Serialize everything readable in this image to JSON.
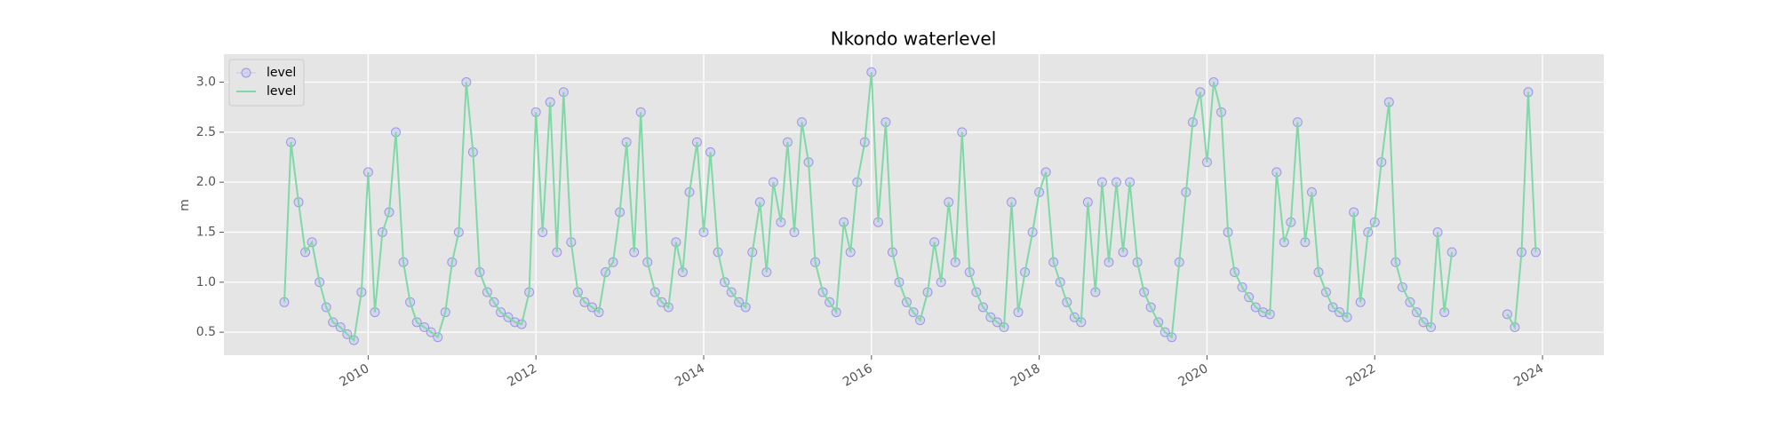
{
  "chart_data": {
    "type": "line",
    "title": "Nkondo waterlevel",
    "ylabel": "m",
    "x": [
      2009.0,
      2009.08,
      2009.17,
      2009.25,
      2009.33,
      2009.42,
      2009.5,
      2009.58,
      2009.67,
      2009.75,
      2009.83,
      2009.92,
      2010.0,
      2010.08,
      2010.17,
      2010.25,
      2010.33,
      2010.42,
      2010.5,
      2010.58,
      2010.67,
      2010.75,
      2010.83,
      2010.92,
      2011.0,
      2011.08,
      2011.17,
      2011.25,
      2011.33,
      2011.42,
      2011.5,
      2011.58,
      2011.67,
      2011.75,
      2011.83,
      2011.92,
      2012.0,
      2012.08,
      2012.17,
      2012.25,
      2012.33,
      2012.42,
      2012.5,
      2012.58,
      2012.67,
      2012.75,
      2012.83,
      2012.92,
      2013.0,
      2013.08,
      2013.17,
      2013.25,
      2013.33,
      2013.42,
      2013.5,
      2013.58,
      2013.67,
      2013.75,
      2013.83,
      2013.92,
      2014.0,
      2014.08,
      2014.17,
      2014.25,
      2014.33,
      2014.42,
      2014.5,
      2014.58,
      2014.67,
      2014.75,
      2014.83,
      2014.92,
      2015.0,
      2015.08,
      2015.17,
      2015.25,
      2015.33,
      2015.42,
      2015.5,
      2015.58,
      2015.67,
      2015.75,
      2015.83,
      2015.92,
      2016.0,
      2016.08,
      2016.17,
      2016.25,
      2016.33,
      2016.42,
      2016.5,
      2016.58,
      2016.67,
      2016.75,
      2016.83,
      2016.92,
      2017.0,
      2017.08,
      2017.17,
      2017.25,
      2017.33,
      2017.42,
      2017.5,
      2017.58,
      2017.67,
      2017.75,
      2017.83,
      2017.92,
      2018.0,
      2018.08,
      2018.17,
      2018.25,
      2018.33,
      2018.42,
      2018.5,
      2018.58,
      2018.67,
      2018.75,
      2018.83,
      2018.92,
      2019.0,
      2019.08,
      2019.17,
      2019.25,
      2019.33,
      2019.42,
      2019.5,
      2019.58,
      2019.67,
      2019.75,
      2019.83,
      2019.92,
      2020.0,
      2020.08,
      2020.17,
      2020.25,
      2020.33,
      2020.42,
      2020.5,
      2020.58,
      2020.67,
      2020.75,
      2020.83,
      2020.92,
      2021.0,
      2021.08,
      2021.17,
      2021.25,
      2021.33,
      2021.42,
      2021.5,
      2021.58,
      2021.67,
      2021.75,
      2021.83,
      2021.92,
      2022.0,
      2022.08,
      2022.17,
      2022.25,
      2022.33,
      2022.42,
      2022.5,
      2022.58,
      2022.67,
      2022.75,
      2022.83,
      2022.92,
      2023.0,
      2023.08,
      2023.17,
      2023.25,
      2023.33,
      2023.42,
      2023.5,
      2023.58,
      2023.67,
      2023.75,
      2023.83,
      2023.92
    ],
    "series": [
      {
        "name": "level",
        "color": "#c8c8f0",
        "edgecolor": "#6a6ae0",
        "style": "markers",
        "values": [
          0.8,
          2.4,
          1.8,
          1.3,
          1.4,
          1.0,
          0.75,
          0.6,
          0.55,
          0.48,
          0.42,
          0.9,
          2.1,
          0.7,
          1.5,
          1.7,
          2.5,
          1.2,
          0.8,
          0.6,
          0.55,
          0.5,
          0.45,
          0.7,
          1.2,
          1.5,
          3.0,
          2.3,
          1.1,
          0.9,
          0.8,
          0.7,
          0.65,
          0.6,
          0.58,
          0.9,
          2.7,
          1.5,
          2.8,
          1.3,
          2.9,
          1.4,
          0.9,
          0.8,
          0.75,
          0.7,
          1.1,
          1.2,
          1.7,
          2.4,
          1.3,
          2.7,
          1.2,
          0.9,
          0.8,
          0.75,
          1.4,
          1.1,
          1.9,
          2.4,
          1.5,
          2.3,
          1.3,
          1.0,
          0.9,
          0.8,
          0.75,
          1.3,
          1.8,
          1.1,
          2.0,
          1.6,
          2.4,
          1.5,
          2.6,
          2.2,
          1.2,
          0.9,
          0.8,
          0.7,
          1.6,
          1.3,
          2.0,
          2.4,
          3.1,
          1.6,
          2.6,
          1.3,
          1.0,
          0.8,
          0.7,
          0.62,
          0.9,
          1.4,
          1.0,
          1.8,
          1.2,
          2.5,
          1.1,
          0.9,
          0.75,
          0.65,
          0.6,
          0.55,
          1.8,
          0.7,
          1.1,
          1.5,
          1.9,
          2.1,
          1.2,
          1.0,
          0.8,
          0.65,
          0.6,
          1.8,
          0.9,
          2.0,
          1.2,
          2.0,
          1.3,
          2.0,
          1.2,
          0.9,
          0.75,
          0.6,
          0.5,
          0.45,
          1.2,
          1.9,
          2.6,
          2.9,
          2.2,
          3.0,
          2.7,
          1.5,
          1.1,
          0.95,
          0.85,
          0.75,
          0.7,
          0.68,
          2.1,
          1.4,
          1.6,
          2.6,
          1.4,
          1.9,
          1.1,
          0.9,
          0.75,
          0.7,
          0.65,
          1.7,
          0.8,
          1.5,
          1.6,
          2.2,
          2.8,
          1.2,
          0.95,
          0.8,
          0.7,
          0.6,
          0.55,
          1.5,
          0.7,
          1.3,
          null,
          null,
          null,
          null,
          null,
          null,
          null,
          0.68,
          0.55,
          1.3,
          2.9,
          1.3
        ]
      },
      {
        "name": "level",
        "color": "#7fd9a6",
        "style": "line",
        "values": [
          0.8,
          2.4,
          1.8,
          1.3,
          1.4,
          1.0,
          0.75,
          0.6,
          0.55,
          0.48,
          0.42,
          0.9,
          2.1,
          0.7,
          1.5,
          1.7,
          2.5,
          1.2,
          0.8,
          0.6,
          0.55,
          0.5,
          0.45,
          0.7,
          1.2,
          1.5,
          3.0,
          2.3,
          1.1,
          0.9,
          0.8,
          0.7,
          0.65,
          0.6,
          0.58,
          0.9,
          2.7,
          1.5,
          2.8,
          1.3,
          2.9,
          1.4,
          0.9,
          0.8,
          0.75,
          0.7,
          1.1,
          1.2,
          1.7,
          2.4,
          1.3,
          2.7,
          1.2,
          0.9,
          0.8,
          0.75,
          1.4,
          1.1,
          1.9,
          2.4,
          1.5,
          2.3,
          1.3,
          1.0,
          0.9,
          0.8,
          0.75,
          1.3,
          1.8,
          1.1,
          2.0,
          1.6,
          2.4,
          1.5,
          2.6,
          2.2,
          1.2,
          0.9,
          0.8,
          0.7,
          1.6,
          1.3,
          2.0,
          2.4,
          3.1,
          1.6,
          2.6,
          1.3,
          1.0,
          0.8,
          0.7,
          0.62,
          0.9,
          1.4,
          1.0,
          1.8,
          1.2,
          2.5,
          1.1,
          0.9,
          0.75,
          0.65,
          0.6,
          0.55,
          1.8,
          0.7,
          1.1,
          1.5,
          1.9,
          2.1,
          1.2,
          1.0,
          0.8,
          0.65,
          0.6,
          1.8,
          0.9,
          2.0,
          1.2,
          2.0,
          1.3,
          2.0,
          1.2,
          0.9,
          0.75,
          0.6,
          0.5,
          0.45,
          1.2,
          1.9,
          2.6,
          2.9,
          2.2,
          3.0,
          2.7,
          1.5,
          1.1,
          0.95,
          0.85,
          0.75,
          0.7,
          0.68,
          2.1,
          1.4,
          1.6,
          2.6,
          1.4,
          1.9,
          1.1,
          0.9,
          0.75,
          0.7,
          0.65,
          1.7,
          0.8,
          1.5,
          1.6,
          2.2,
          2.8,
          1.2,
          0.95,
          0.8,
          0.7,
          0.6,
          0.55,
          1.5,
          0.7,
          1.3,
          null,
          null,
          null,
          null,
          null,
          null,
          null,
          0.68,
          0.55,
          1.3,
          2.9,
          1.3
        ]
      }
    ],
    "xlim": [
      2008.28,
      2024.73
    ],
    "xticks": [
      2010,
      2012,
      2014,
      2016,
      2018,
      2020,
      2022,
      2024
    ],
    "ylim": [
      0.27,
      3.28
    ],
    "yticks": [
      0.5,
      {
        "value": 1,
        "label": "1.0"
      },
      1.5,
      {
        "value": 2,
        "label": "2.0"
      },
      2.5,
      {
        "value": 3,
        "label": "3.0"
      }
    ],
    "grid": true,
    "legend": "upper-left"
  }
}
